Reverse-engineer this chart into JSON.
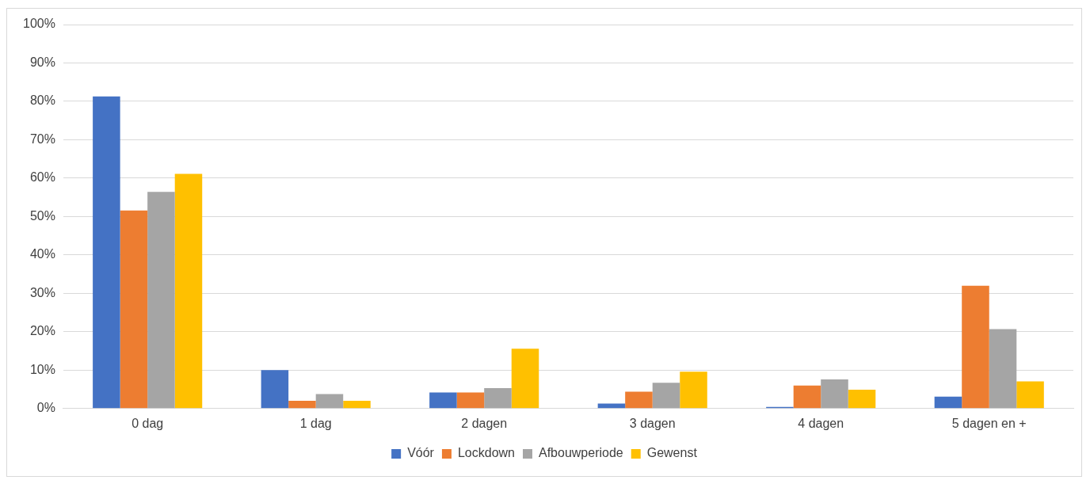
{
  "chart_data": {
    "type": "bar",
    "categories": [
      "0 dag",
      "1 dag",
      "2 dagen",
      "3 dagen",
      "4 dagen",
      "5 dagen en +"
    ],
    "series": [
      {
        "name": "Vóór",
        "color": "#4472c4",
        "values": [
          81.3,
          10,
          4.2,
          1.3,
          0.4,
          3.1
        ]
      },
      {
        "name": "Lockdown",
        "color": "#ed7d31",
        "values": [
          51.6,
          2,
          4.2,
          4.4,
          6,
          32
        ]
      },
      {
        "name": "Afbouwperiode",
        "color": "#a5a5a5",
        "values": [
          56.4,
          3.8,
          5.3,
          6.7,
          7.6,
          20.7
        ]
      },
      {
        "name": "Gewenst",
        "color": "#ffc000",
        "values": [
          61.1,
          2,
          15.6,
          9.6,
          4.9,
          7.1
        ]
      }
    ],
    "ylim": [
      0,
      100
    ],
    "yticks": [
      {
        "value": 0,
        "label": "0%"
      },
      {
        "value": 10,
        "label": "10%"
      },
      {
        "value": 20,
        "label": "20%"
      },
      {
        "value": 30,
        "label": "30%"
      },
      {
        "value": 40,
        "label": "40%"
      },
      {
        "value": 50,
        "label": "50%"
      },
      {
        "value": 60,
        "label": "60%"
      },
      {
        "value": 70,
        "label": "70%"
      },
      {
        "value": 80,
        "label": "80%"
      },
      {
        "value": 90,
        "label": "90%"
      },
      {
        "value": 100,
        "label": "100%"
      }
    ],
    "grid": "y",
    "legend": "bottom"
  }
}
